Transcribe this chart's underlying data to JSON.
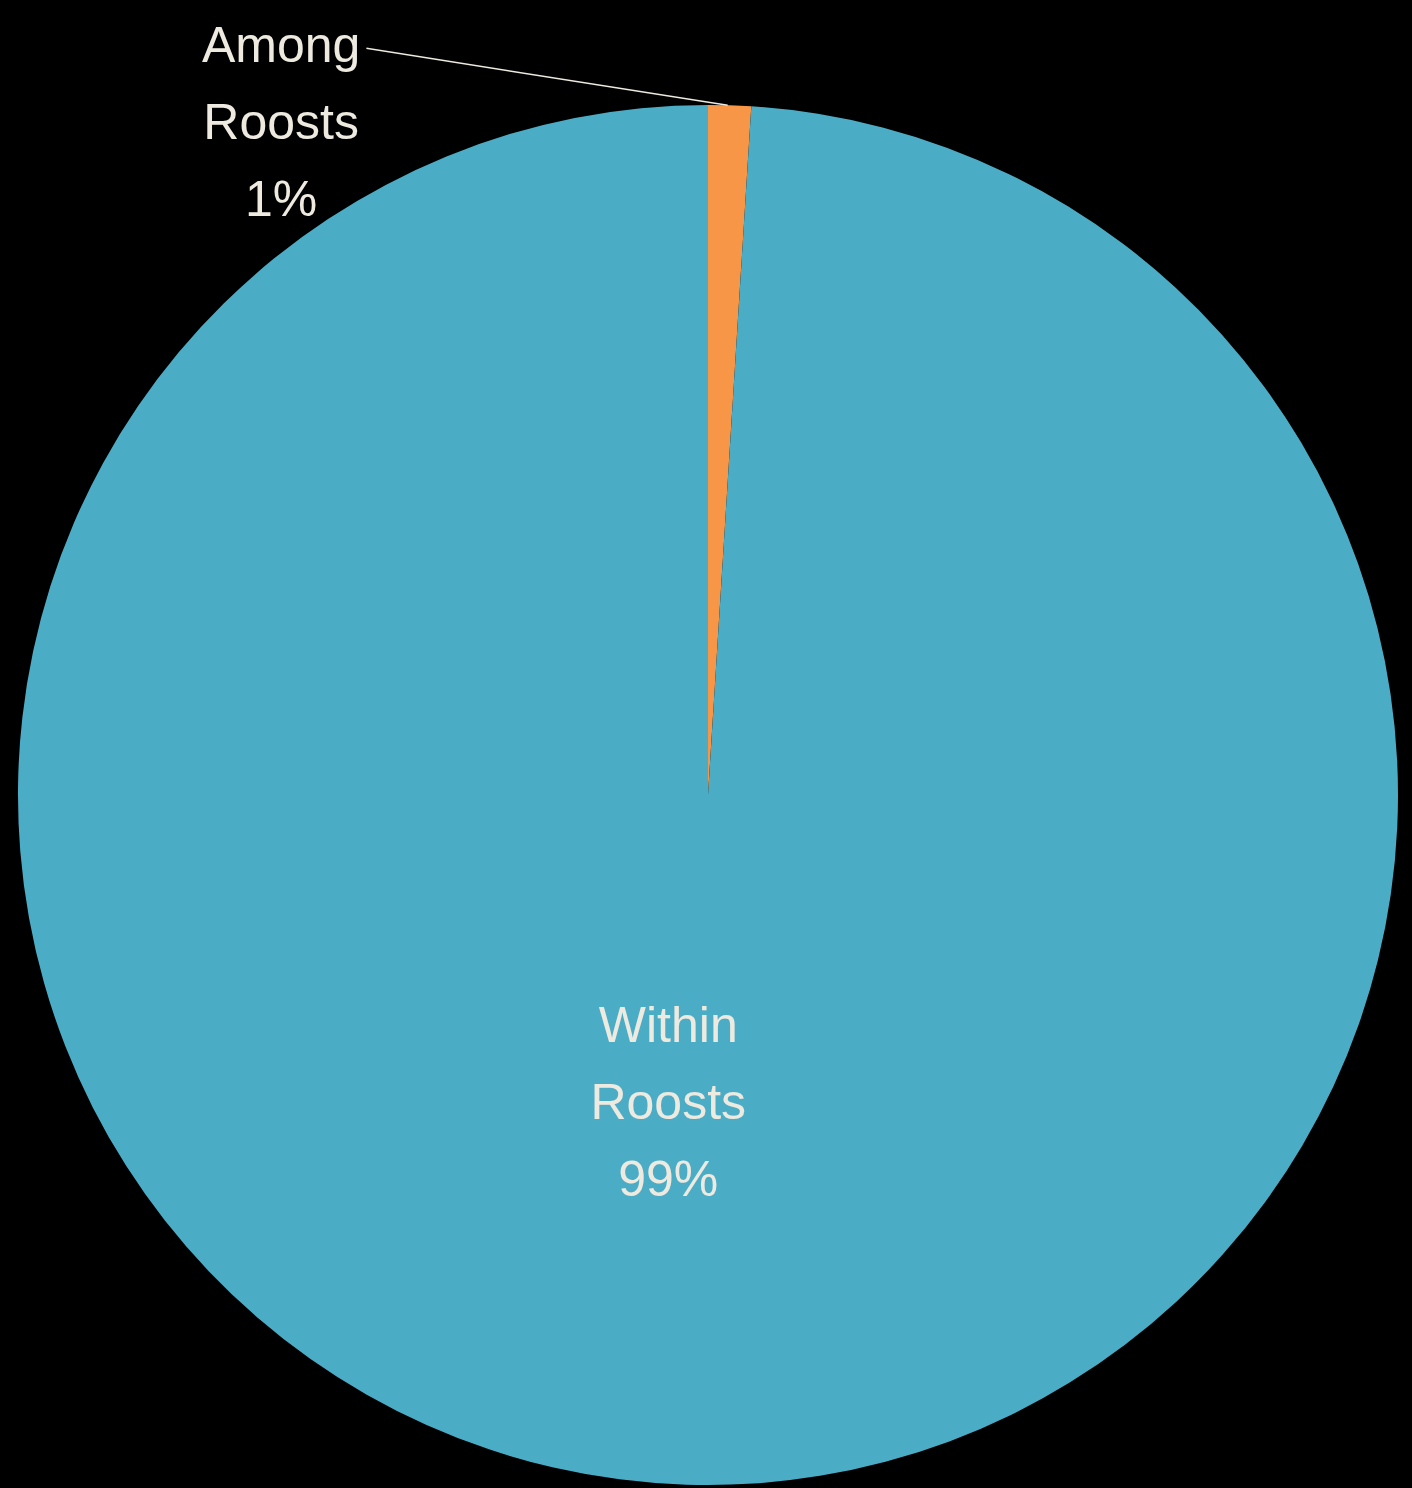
{
  "chart_data": {
    "type": "pie",
    "categories": [
      "Among Roosts",
      "Within Roosts"
    ],
    "values": [
      1,
      99
    ],
    "colors": [
      "#f79646",
      "#4bacc6"
    ],
    "value_labels": [
      "1%",
      "99%"
    ],
    "legend": false
  }
}
